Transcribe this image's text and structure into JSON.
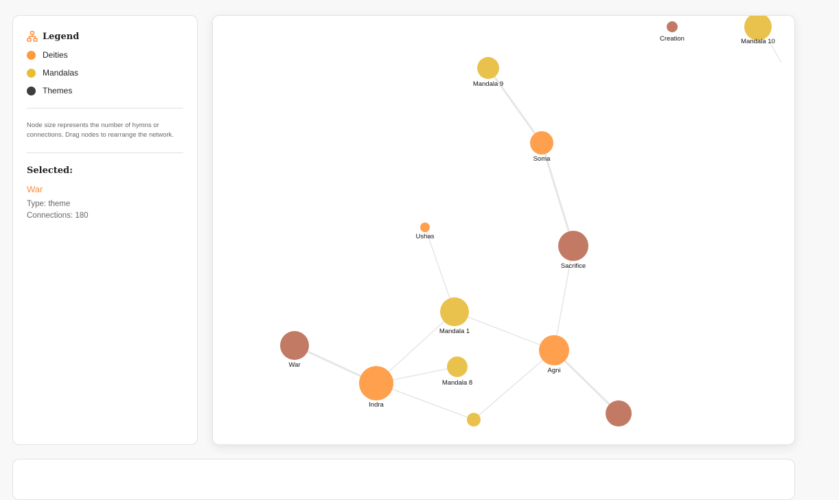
{
  "legend": {
    "title": "Legend",
    "icon": "sitemap-icon",
    "items": [
      {
        "label": "Deities",
        "color": "#ff9a3d"
      },
      {
        "label": "Mandalas",
        "color": "#e8bd30"
      },
      {
        "label": "Themes",
        "color": "#3d3d3d"
      }
    ],
    "note": "Node size represents the number of hymns or connections. Drag nodes to rearrange the network.",
    "selected_heading": "Selected:",
    "selected": {
      "name": "War",
      "type": "Type: theme",
      "connections": "Connections: 180"
    }
  },
  "colors": {
    "deity": "#ffa04f",
    "mandala": "#e9c24e",
    "theme": "#c27a65",
    "edge": "#e8e8e8",
    "accent": "#ff8c3a"
  },
  "graph": {
    "nodes": [
      {
        "id": "creation",
        "label": "Creation",
        "type": "theme"
      },
      {
        "id": "m10",
        "label": "Mandala 10",
        "type": "mandala"
      },
      {
        "id": "m9",
        "label": "Mandala 9",
        "type": "mandala"
      },
      {
        "id": "soma",
        "label": "Soma",
        "type": "deity"
      },
      {
        "id": "ushas",
        "label": "Ushas",
        "type": "deity"
      },
      {
        "id": "sacrifice",
        "label": "Sacrifice",
        "type": "theme"
      },
      {
        "id": "m1",
        "label": "Mandala 1",
        "type": "mandala"
      },
      {
        "id": "war",
        "label": "War",
        "type": "theme"
      },
      {
        "id": "m8",
        "label": "Mandala 8",
        "type": "mandala"
      },
      {
        "id": "agni",
        "label": "Agni",
        "type": "deity"
      },
      {
        "id": "indra",
        "label": "Indra",
        "type": "deity"
      },
      {
        "id": "m_unl",
        "label": "",
        "type": "mandala"
      },
      {
        "id": "t_unl",
        "label": "",
        "type": "theme"
      }
    ],
    "edges": [
      [
        "m9",
        "soma"
      ],
      [
        "soma",
        "sacrifice"
      ],
      [
        "sacrifice",
        "agni"
      ],
      [
        "ushas",
        "m1"
      ],
      [
        "m1",
        "agni"
      ],
      [
        "m1",
        "indra"
      ],
      [
        "war",
        "indra"
      ],
      [
        "indra",
        "m8"
      ],
      [
        "indra",
        "m_unl"
      ],
      [
        "agni",
        "m_unl"
      ],
      [
        "agni",
        "t_unl"
      ]
    ]
  }
}
